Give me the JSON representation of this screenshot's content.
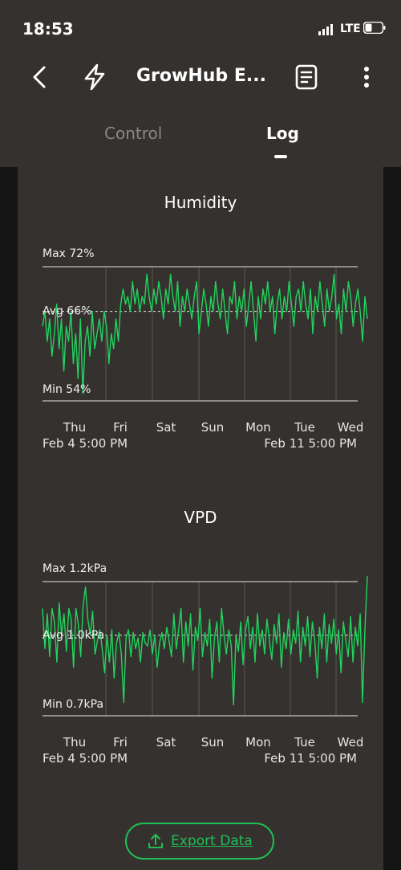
{
  "status": {
    "time": "18:53",
    "network": "LTE"
  },
  "header": {
    "title": "GrowHub E..."
  },
  "tabs": [
    {
      "label": "Control"
    },
    {
      "label": "Log"
    }
  ],
  "export_label": "Export Data",
  "colors": {
    "accent": "#1fbf57",
    "panel": "#35312e",
    "background": "#141414"
  },
  "chart_data": [
    {
      "type": "line",
      "title": "Humidity",
      "max_label": "Max 72%",
      "avg_label": "Avg 66%",
      "min_label": "Min 54%",
      "ylim": [
        54,
        72
      ],
      "avg": 66,
      "day_labels": [
        "Thu",
        "Fri",
        "Sat",
        "Sun",
        "Mon",
        "Tue",
        "Wed"
      ],
      "start_label": "Feb 4 5:00 PM",
      "end_label": "Feb 11 5:00 PM",
      "series": [
        {
          "values": [
            64,
            66,
            62,
            65,
            60,
            63,
            67,
            61,
            65,
            58,
            64,
            62,
            66,
            59,
            63,
            57,
            65,
            55,
            62,
            64,
            60,
            66,
            61,
            63,
            65,
            62,
            66,
            64,
            59,
            63,
            61,
            65,
            62,
            67,
            69,
            67,
            68,
            66,
            70,
            67,
            69,
            66,
            68,
            67,
            71,
            68,
            66,
            69,
            67,
            70,
            68,
            65,
            69,
            67,
            71,
            68,
            66,
            70,
            64,
            68,
            66,
            69,
            67,
            65,
            68,
            70,
            63,
            66,
            69,
            67,
            64,
            68,
            66,
            70,
            67,
            65,
            69,
            66,
            63,
            68,
            67,
            70,
            65,
            68,
            66,
            69,
            64,
            67,
            70,
            66,
            62,
            68,
            65,
            69,
            67,
            70,
            66,
            68,
            63,
            67,
            69,
            65,
            68,
            66,
            70,
            67,
            64,
            68,
            69,
            66,
            70,
            67,
            65,
            69,
            63,
            68,
            66,
            70,
            67,
            64,
            69,
            66,
            68,
            71,
            65,
            67,
            63,
            69,
            66,
            70,
            68,
            64,
            67,
            69,
            66,
            62,
            68,
            65
          ]
        }
      ]
    },
    {
      "type": "line",
      "title": "VPD",
      "max_label": "Max 1.2kPa",
      "avg_label": "Avg 1.0kPa",
      "min_label": "Min 0.7kPa",
      "ylim": [
        0.7,
        1.2
      ],
      "avg": 1.0,
      "day_labels": [
        "Thu",
        "Fri",
        "Sat",
        "Sun",
        "Mon",
        "Tue",
        "Wed"
      ],
      "start_label": "Feb 4 5:00 PM",
      "end_label": "Feb 11 5:00 PM",
      "series": [
        {
          "values": [
            1.1,
            0.95,
            1.08,
            0.92,
            1.1,
            1.05,
            0.9,
            1.12,
            1.0,
            1.08,
            0.94,
            1.1,
            1.06,
            0.88,
            1.1,
            1.04,
            0.92,
            1.11,
            1.18,
            1.06,
            1.0,
            1.09,
            0.93,
            0.98,
            1.02,
            0.95,
            0.86,
            1.0,
            0.9,
            1.02,
            0.84,
            0.97,
            1.01,
            0.93,
            0.75,
            0.99,
            1.02,
            0.92,
            1.01,
            0.95,
            0.99,
            0.9,
            1.01,
            0.97,
            0.96,
            1.02,
            0.93,
            1.0,
            0.88,
            0.97,
            1.01,
            0.95,
            1.03,
            0.98,
            0.92,
            1.08,
            0.95,
            1.02,
            1.1,
            0.9,
            1.05,
            0.96,
            1.08,
            0.87,
            1.03,
            0.98,
            1.1,
            0.92,
            1.01,
            0.96,
            1.06,
            0.84,
            0.99,
            1.05,
            0.9,
            1.1,
            1.0,
            0.93,
            1.02,
            0.96,
            0.74,
            1.0,
            0.94,
            1.05,
            0.89,
            1.02,
            1.07,
            0.95,
            1.03,
            0.9,
            1.08,
            0.96,
            1.02,
            0.93,
            1.06,
            0.98,
            0.91,
            1.04,
            0.97,
            1.08,
            0.88,
            1.01,
            0.95,
            1.06,
            0.93,
            1.02,
            0.97,
            1.09,
            0.9,
            1.03,
            0.96,
            1.07,
            0.92,
            1.05,
            0.98,
            0.84,
            1.03,
            0.95,
            1.08,
            0.9,
            1.04,
            0.97,
            1.06,
            0.93,
            1.02,
            0.86,
            1.05,
            0.98,
            0.92,
            1.07,
            0.9,
            1.03,
            0.96,
            1.08,
            0.75,
            1.02,
            1.22
          ]
        }
      ]
    }
  ]
}
